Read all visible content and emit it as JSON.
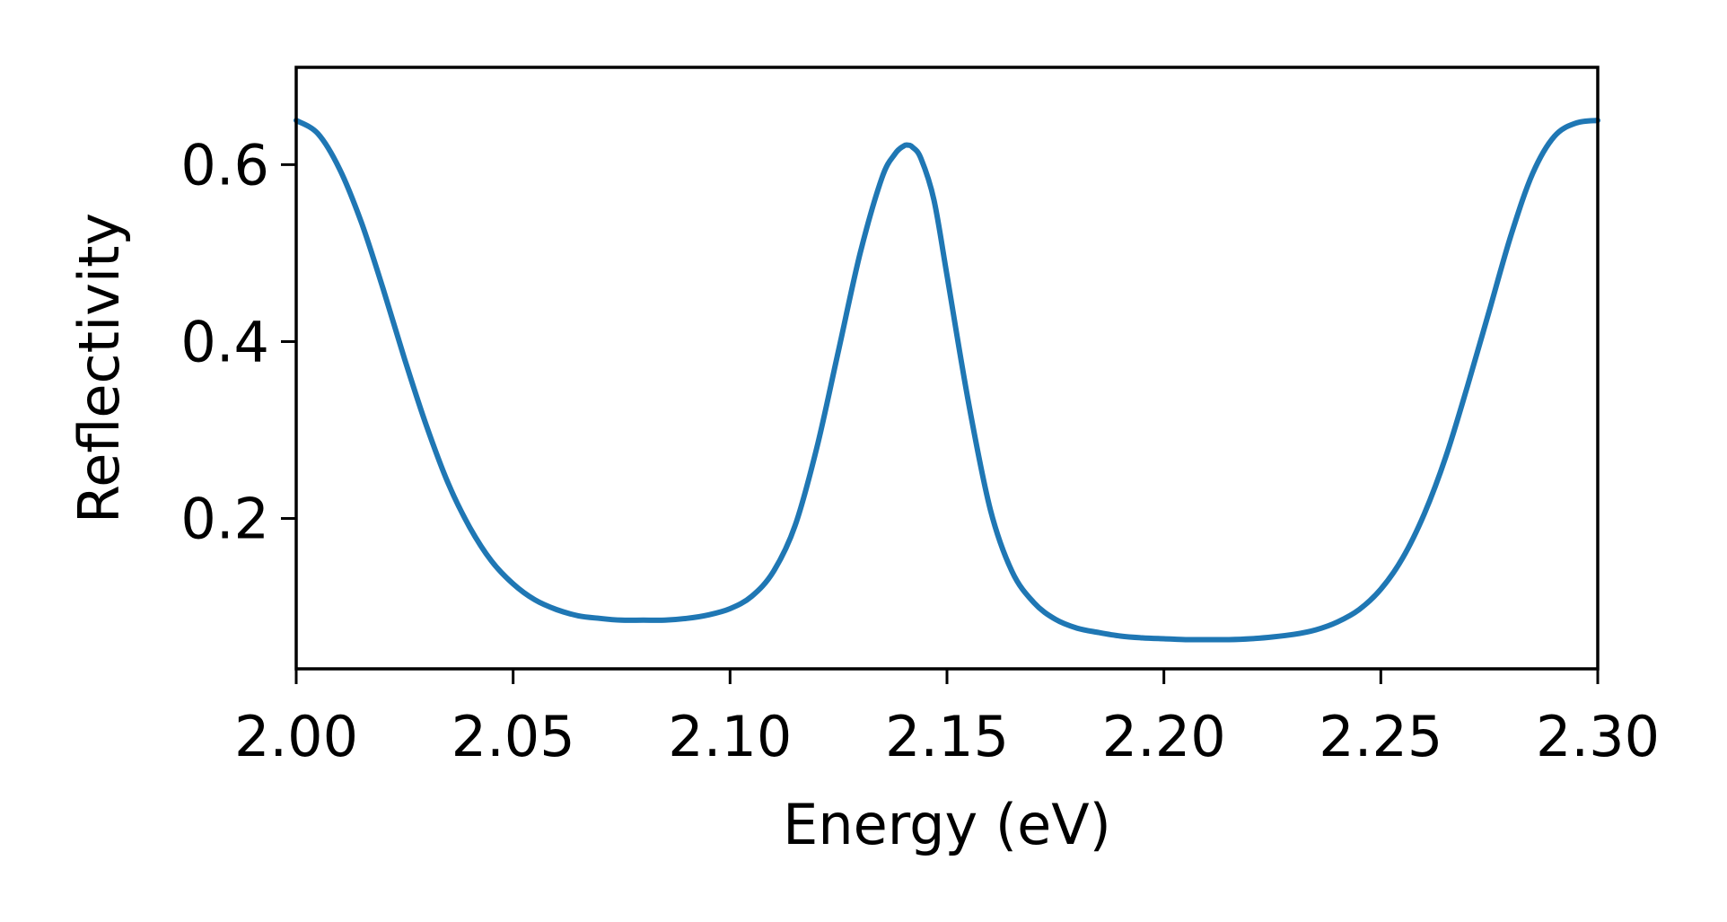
{
  "chart_data": {
    "type": "line",
    "title": "",
    "xlabel": "Energy (eV)",
    "ylabel": "Reflectivity",
    "xlim": [
      2.0,
      2.3
    ],
    "ylim": [
      0.03,
      0.71
    ],
    "x_ticks": [
      2.0,
      2.05,
      2.1,
      2.15,
      2.2,
      2.25,
      2.3
    ],
    "x_tick_labels": [
      "2.00",
      "2.05",
      "2.10",
      "2.15",
      "2.20",
      "2.25",
      "2.30"
    ],
    "y_ticks": [
      0.2,
      0.4,
      0.6
    ],
    "y_tick_labels": [
      "0.2",
      "0.4",
      "0.6"
    ],
    "grid": false,
    "legend": "none",
    "series": [
      {
        "color": "#1f77b4",
        "x": [
          2.0,
          2.005,
          2.01,
          2.015,
          2.02,
          2.025,
          2.03,
          2.035,
          2.04,
          2.045,
          2.05,
          2.055,
          2.06,
          2.065,
          2.07,
          2.075,
          2.08,
          2.085,
          2.09,
          2.095,
          2.1,
          2.105,
          2.11,
          2.115,
          2.12,
          2.125,
          2.13,
          2.135,
          2.138,
          2.14,
          2.141,
          2.142,
          2.144,
          2.147,
          2.15,
          2.155,
          2.16,
          2.165,
          2.17,
          2.175,
          2.18,
          2.185,
          2.19,
          2.195,
          2.2,
          2.205,
          2.21,
          2.215,
          2.22,
          2.225,
          2.23,
          2.235,
          2.24,
          2.245,
          2.25,
          2.255,
          2.26,
          2.265,
          2.27,
          2.275,
          2.28,
          2.285,
          2.29,
          2.295,
          2.3
        ],
        "y": [
          0.65,
          0.635,
          0.595,
          0.535,
          0.46,
          0.38,
          0.305,
          0.24,
          0.19,
          0.152,
          0.126,
          0.108,
          0.097,
          0.09,
          0.087,
          0.085,
          0.085,
          0.085,
          0.087,
          0.091,
          0.098,
          0.112,
          0.14,
          0.192,
          0.28,
          0.39,
          0.5,
          0.585,
          0.612,
          0.621,
          0.622,
          0.62,
          0.607,
          0.56,
          0.475,
          0.33,
          0.21,
          0.14,
          0.105,
          0.086,
          0.076,
          0.071,
          0.067,
          0.065,
          0.064,
          0.063,
          0.063,
          0.063,
          0.064,
          0.066,
          0.069,
          0.074,
          0.083,
          0.097,
          0.12,
          0.155,
          0.205,
          0.27,
          0.35,
          0.435,
          0.52,
          0.59,
          0.632,
          0.647,
          0.65
        ]
      }
    ]
  }
}
